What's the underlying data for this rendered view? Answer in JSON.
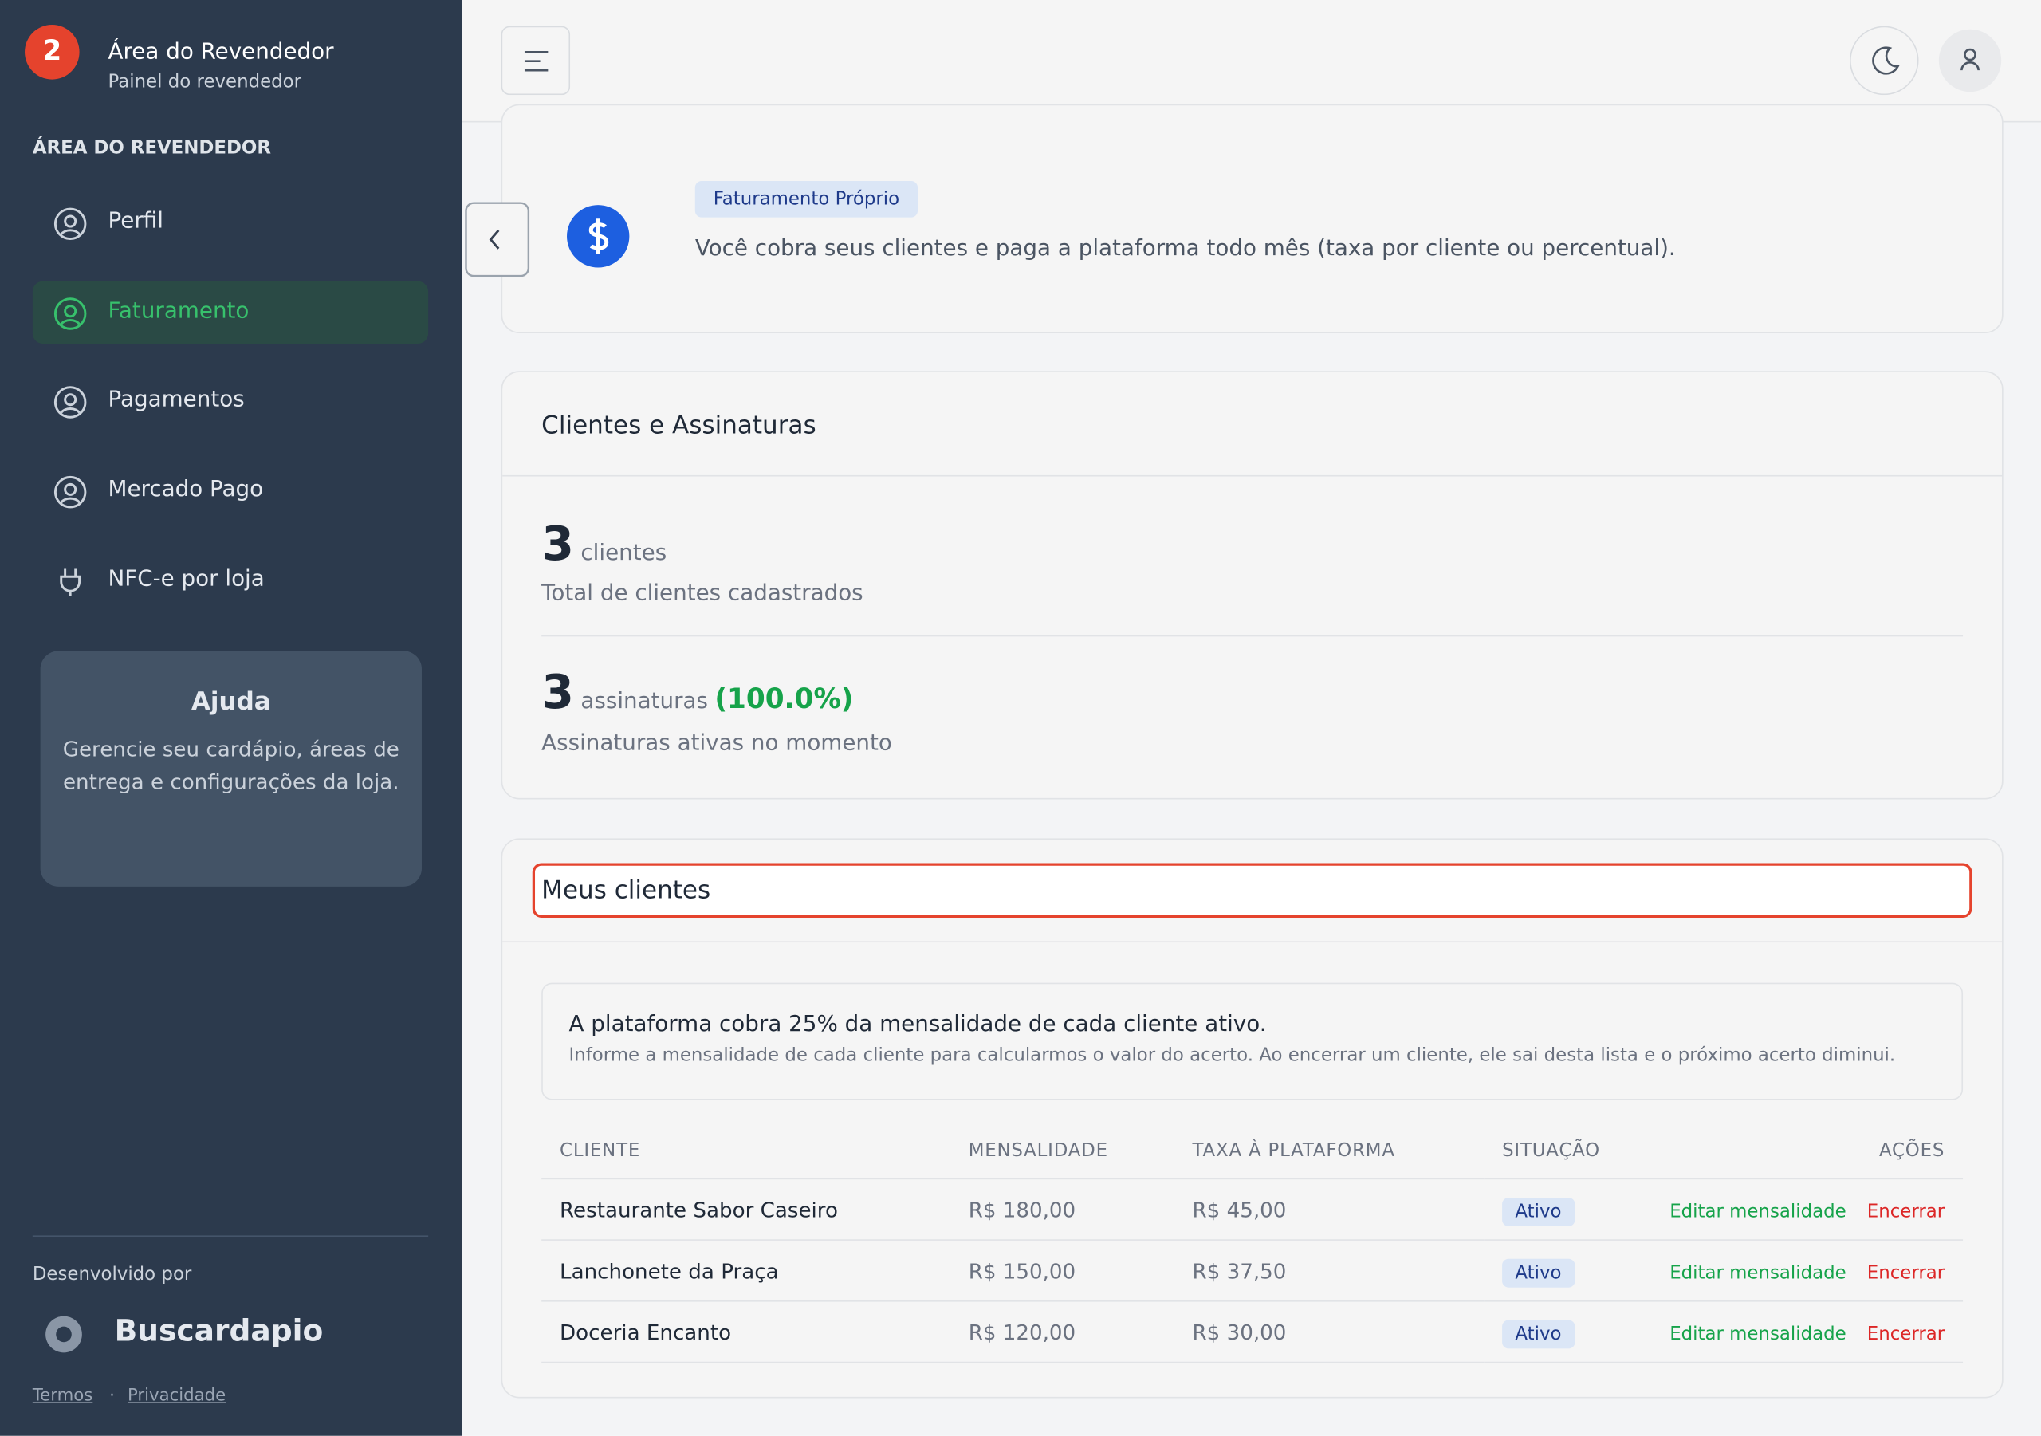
{
  "sidebar": {
    "badge": "2",
    "title": "Área do Revendedor",
    "subtitle": "Painel do revendedor",
    "section": "ÁREA DO REVENDEDOR",
    "menu": [
      "Perfil",
      "Faturamento",
      "Pagamentos",
      "Mercado Pago",
      "NFC-e por loja"
    ],
    "help": {
      "title": "Ajuda",
      "text": "Gerencie seu cardápio, áreas de entrega e configurações da loja."
    },
    "footer": {
      "developed_by": "Desenvolvido por",
      "brand": "Buscardapio",
      "links": [
        "Termos",
        "Privacidade"
      ]
    }
  },
  "billing": {
    "badge": "Faturamento Próprio",
    "text": "Você cobra seus clientes e paga a plataforma todo mês (taxa por cliente ou percentual)."
  },
  "summary": {
    "title": "Clientes e Assinaturas",
    "clients_count": 3,
    "clients_unit": "clientes",
    "clients_caption": "Total de clientes cadastrados",
    "subs_count": 3,
    "subs_unit": "assinaturas",
    "subs_percent": "(100.0%)",
    "subs_caption": "Assinaturas ativas no momento"
  },
  "clients": {
    "title": "Meus clientes",
    "notice_title": "A plataforma cobra 25% da mensalidade de cada cliente ativo.",
    "notice_text": "Informe a mensalidade de cada cliente para calcularmos o valor do acerto. Ao encerrar um cliente, ele sai desta lista e o próximo acerto diminui.",
    "table": {
      "headers": [
        "CLIENTE",
        "MENSALIDADE",
        "TAXA À PLATAFORMA",
        "SITUAÇÃO",
        "AÇÕES"
      ],
      "rows": [
        [
          "Restaurante Sabor Caseiro",
          "R$ 180,00",
          "R$ 45,00",
          "Ativo",
          "Editar mensalidade",
          "Encerrar"
        ],
        [
          "Lanchonete da Praça",
          "R$ 150,00",
          "R$ 37,50",
          "Ativo",
          "Editar mensalidade",
          "Encerrar"
        ],
        [
          "Doceria Encanto",
          "R$ 120,00",
          "R$ 30,00",
          "Ativo",
          "Editar mensalidade",
          "Encerrar"
        ]
      ]
    }
  }
}
